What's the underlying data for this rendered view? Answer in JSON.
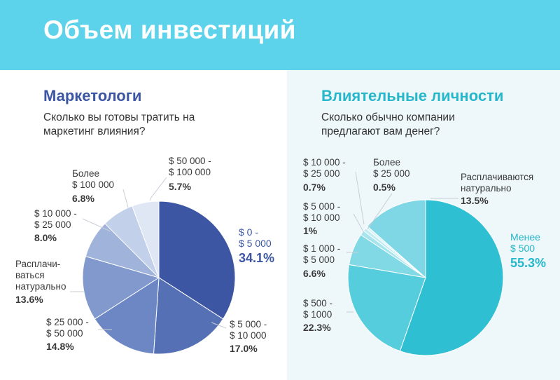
{
  "title": "Объем инвестиций",
  "colors": {
    "header": "#5cd3ea",
    "left_accent": "#3d56a3",
    "right_accent": "#27b7cb"
  },
  "left": {
    "heading": "Маркетологи",
    "question": "Сколько вы готовы тратить на маркетинг влияния?"
  },
  "right": {
    "heading": "Влиятельные личности",
    "question": "Сколько обычно компании предлагают вам денег?"
  },
  "chart_data": [
    {
      "type": "pie",
      "title": "Маркетологи",
      "slices": [
        {
          "label": "$ 0 -\n$ 5 000",
          "value": 34.1,
          "pct": "34.1%",
          "color": "#3d56a3"
        },
        {
          "label": "$ 5 000 -\n$ 10 000",
          "value": 17.0,
          "pct": "17.0%",
          "color": "#5570b5"
        },
        {
          "label": "$ 25 000 -\n$ 50 000",
          "value": 14.8,
          "pct": "14.8%",
          "color": "#6d87c4"
        },
        {
          "label": "Расплачи-\nваться\nнатурально",
          "value": 13.6,
          "pct": "13.6%",
          "color": "#8199cd"
        },
        {
          "label": "$ 10 000 -\n$ 25 000",
          "value": 8.0,
          "pct": "8.0%",
          "color": "#a0b3db"
        },
        {
          "label": "Более\n$ 100 000",
          "value": 6.8,
          "pct": "6.8%",
          "color": "#c3d0ea"
        },
        {
          "label": "$ 50 000 -\n$ 100 000",
          "value": 5.7,
          "pct": "5.7%",
          "color": "#dfe6f4"
        }
      ]
    },
    {
      "type": "pie",
      "title": "Влиятельные личности",
      "slices": [
        {
          "label": "Менее\n$ 500",
          "value": 55.3,
          "pct": "55.3%",
          "color": "#2ebfd3"
        },
        {
          "label": "$ 500 -\n$ 1000",
          "value": 22.3,
          "pct": "22.3%",
          "color": "#56cddd"
        },
        {
          "label": "$ 1 000 -\n$ 5 000",
          "value": 6.6,
          "pct": "6.6%",
          "color": "#82d9e6"
        },
        {
          "label": "$ 5 000 -\n$ 10 000",
          "value": 1,
          "pct": "1%",
          "color": "#a7e4ee"
        },
        {
          "label": "$ 10 000 -\n$ 25 000",
          "value": 0.7,
          "pct": "0.7%",
          "color": "#c2ecf3"
        },
        {
          "label": "Более\n$ 25 000",
          "value": 0.5,
          "pct": "0.5%",
          "color": "#d6f2f7"
        },
        {
          "label": "Расплачиваются\nнатурально",
          "value": 13.5,
          "pct": "13.5%",
          "color": "#7fd6e4"
        }
      ]
    }
  ]
}
